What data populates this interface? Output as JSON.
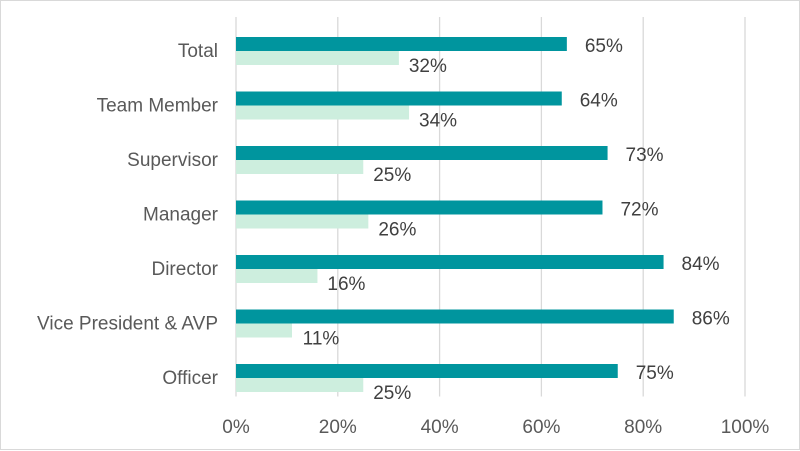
{
  "chart_data": {
    "type": "bar",
    "orientation": "horizontal",
    "categories": [
      "Total",
      "Team Member",
      "Supervisor",
      "Manager",
      "Director",
      "Vice President & AVP",
      "Officer"
    ],
    "series": [
      {
        "values": [
          65,
          64,
          73,
          72,
          84,
          86,
          75
        ],
        "color": "#00959e"
      },
      {
        "values": [
          32,
          34,
          25,
          26,
          16,
          11,
          25
        ],
        "color": "#cdeede"
      }
    ],
    "value_labels": [
      [
        "65%",
        "64%",
        "73%",
        "72%",
        "84%",
        "86%",
        "75%"
      ],
      [
        "32%",
        "34%",
        "25%",
        "26%",
        "16%",
        "11%",
        "25%"
      ]
    ],
    "x_ticks": [
      0,
      20,
      40,
      60,
      80,
      100
    ],
    "x_tick_labels": [
      "0%",
      "20%",
      "40%",
      "60%",
      "80%",
      "100%"
    ],
    "xlim": [
      0,
      100
    ],
    "grid": true,
    "legend": "none",
    "title": "",
    "xlabel": "",
    "ylabel": ""
  }
}
